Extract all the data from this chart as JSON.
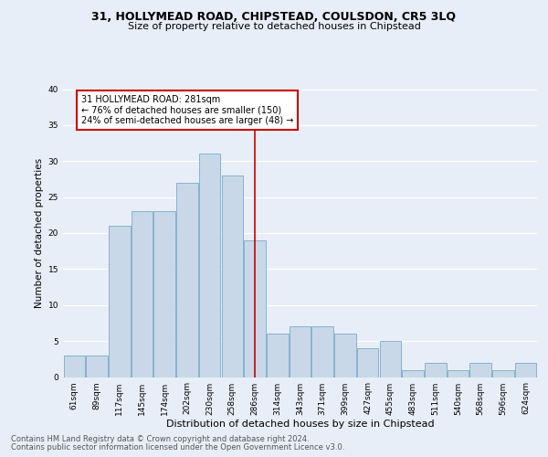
{
  "title1": "31, HOLLYMEAD ROAD, CHIPSTEAD, COULSDON, CR5 3LQ",
  "title2": "Size of property relative to detached houses in Chipstead",
  "xlabel": "Distribution of detached houses by size in Chipstead",
  "ylabel": "Number of detached properties",
  "footer1": "Contains HM Land Registry data © Crown copyright and database right 2024.",
  "footer2": "Contains public sector information licensed under the Open Government Licence v3.0.",
  "bar_labels": [
    "61sqm",
    "89sqm",
    "117sqm",
    "145sqm",
    "174sqm",
    "202sqm",
    "230sqm",
    "258sqm",
    "286sqm",
    "314sqm",
    "343sqm",
    "371sqm",
    "399sqm",
    "427sqm",
    "455sqm",
    "483sqm",
    "511sqm",
    "540sqm",
    "568sqm",
    "596sqm",
    "624sqm"
  ],
  "bar_values": [
    3,
    3,
    21,
    23,
    23,
    27,
    31,
    28,
    19,
    6,
    7,
    7,
    6,
    4,
    5,
    1,
    2,
    1,
    2,
    1,
    2
  ],
  "bar_color": "#c8d8e8",
  "bar_edgecolor": "#7aaac8",
  "vline_x": 8,
  "vline_color": "#cc0000",
  "annotation_title": "31 HOLLYMEAD ROAD: 281sqm",
  "annotation_line1": "← 76% of detached houses are smaller (150)",
  "annotation_line2": "24% of semi-detached houses are larger (48) →",
  "annotation_box_color": "#cc0000",
  "annotation_bg": "#ffffff",
  "ylim": [
    0,
    40
  ],
  "yticks": [
    0,
    5,
    10,
    15,
    20,
    25,
    30,
    35,
    40
  ],
  "bg_color": "#e8eef8",
  "plot_bg": "#e8eef8",
  "title1_fontsize": 9,
  "title2_fontsize": 8,
  "xlabel_fontsize": 8,
  "ylabel_fontsize": 7.5,
  "tick_fontsize": 6.5,
  "footer_fontsize": 6,
  "ann_fontsize": 7
}
